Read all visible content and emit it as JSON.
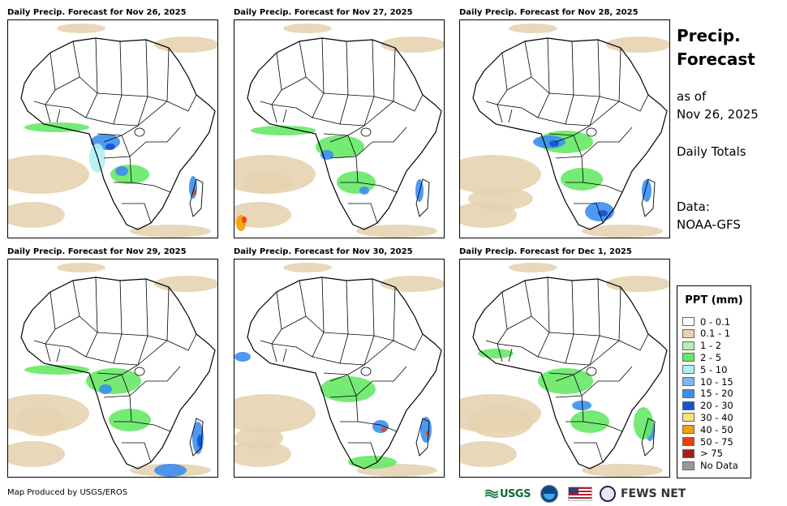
{
  "panels": [
    {
      "title": "Daily Precip. Forecast for Nov 26, 2025"
    },
    {
      "title": "Daily Precip. Forecast for Nov 27, 2025"
    },
    {
      "title": "Daily Precip. Forecast for Nov 28, 2025"
    },
    {
      "title": "Daily Precip. Forecast for Nov 29, 2025"
    },
    {
      "title": "Daily Precip. Forecast for Nov 30, 2025"
    },
    {
      "title": "Daily Precip. Forecast for Dec 1, 2025"
    }
  ],
  "sidebar": {
    "title_line1": "Precip.",
    "title_line2": "Forecast",
    "asof_line1": "as of",
    "asof_line2": "Nov 26, 2025",
    "totals": "Daily Totals",
    "data_line1": "Data:",
    "data_line2": "NOAA-GFS"
  },
  "legend": {
    "title": "PPT (mm)",
    "items": [
      {
        "label": "0 - 0.1",
        "color": "#ffffff"
      },
      {
        "label": "0.1 - 1",
        "color": "#e6d3b0"
      },
      {
        "label": "1 - 2",
        "color": "#b4f0a8"
      },
      {
        "label": "2 - 5",
        "color": "#66e866"
      },
      {
        "label": "5 - 10",
        "color": "#b0f0f0"
      },
      {
        "label": "10 - 15",
        "color": "#7eb8f0"
      },
      {
        "label": "15 - 20",
        "color": "#3c8ef0"
      },
      {
        "label": "20 - 30",
        "color": "#1452d2"
      },
      {
        "label": "30 - 40",
        "color": "#f8e27c"
      },
      {
        "label": "40 - 50",
        "color": "#f5a000"
      },
      {
        "label": "50 - 75",
        "color": "#f23c0a"
      },
      {
        "label": "> 75",
        "color": "#a51e1e"
      },
      {
        "label": "No Data",
        "color": "#9a9a9a"
      }
    ]
  },
  "credit": "Map Produced by USGS/EROS",
  "logos": {
    "usgs": "USGS",
    "fews": "FEWS NET"
  }
}
